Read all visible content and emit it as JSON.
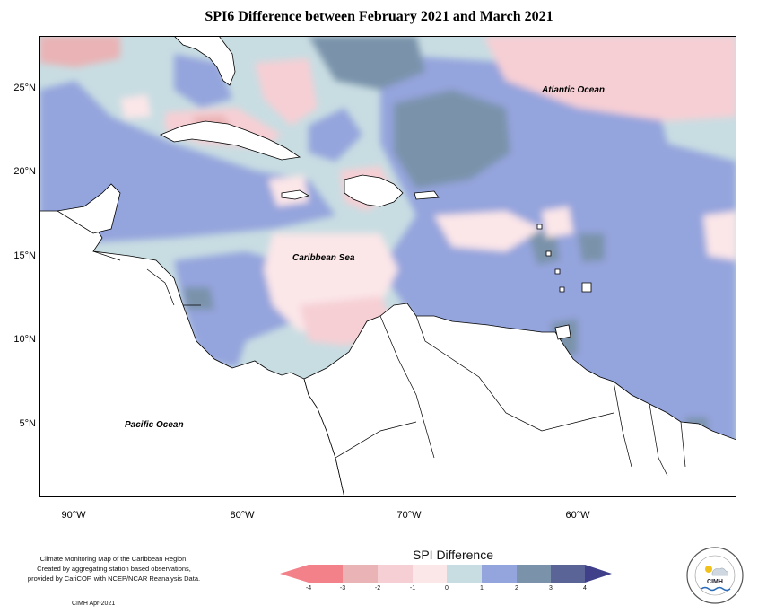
{
  "title": "SPI6 Difference between February 2021 and March 2021",
  "map_labels": {
    "atlantic": "Atlantic Ocean",
    "caribbean": "Caribbean Sea",
    "pacific": "Pacific Ocean"
  },
  "lat_ticks": [
    "25°N",
    "20°N",
    "15°N",
    "10°N",
    "5°N"
  ],
  "lon_ticks": [
    "90°W",
    "80°W",
    "70°W",
    "60°W"
  ],
  "legend": {
    "title": "SPI Difference",
    "ticks": [
      "-4",
      "-3",
      "-2",
      "-1",
      "0",
      "1",
      "2",
      "3",
      "4"
    ],
    "colors": [
      "#f2818a",
      "#eab3b5",
      "#f6cfd4",
      "#fbe6e8",
      "#c8dde2",
      "#94a4dd",
      "#7a93aa",
      "#5a6496"
    ]
  },
  "footnote_lines": [
    "Climate Monitoring Map of the Caribbean Region.",
    "Created by aggregating station based observations,",
    "provided by CariCOF, with NCEP/NCAR Reanalysis Data."
  ],
  "credit": "CIMH Apr-2021",
  "logo_text": "CIMH"
}
